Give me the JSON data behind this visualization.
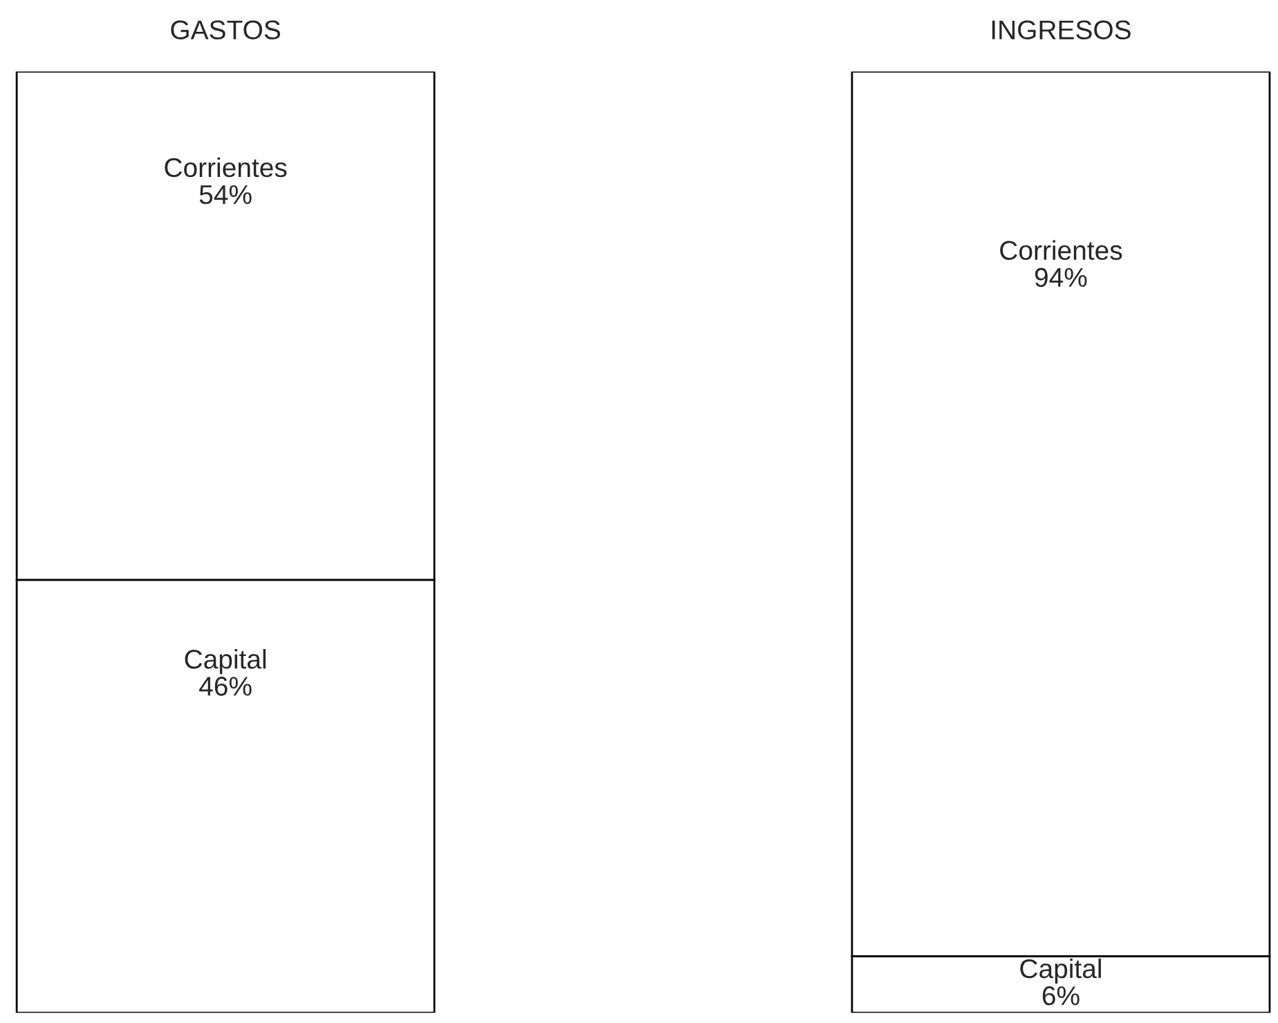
{
  "chart_data": {
    "type": "bar",
    "stacked": true,
    "categories": [
      "GASTOS",
      "INGRESOS"
    ],
    "series": [
      {
        "name": "Capital",
        "color": "#ffffff",
        "values": [
          46,
          6
        ],
        "value_labels": [
          "46%",
          "6%"
        ]
      },
      {
        "name": "Corrientes",
        "color": "#ffffff",
        "values": [
          54,
          94
        ],
        "value_labels": [
          "54%",
          "94%"
        ]
      }
    ],
    "grid": false,
    "legend": false
  }
}
